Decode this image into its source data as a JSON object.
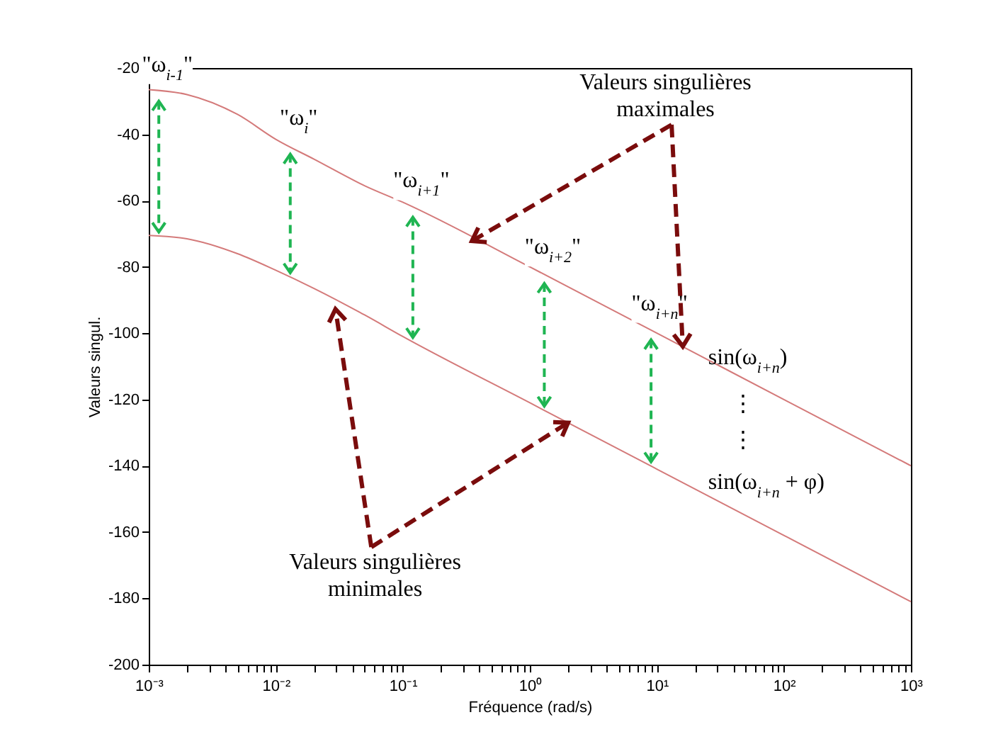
{
  "chart_data": {
    "type": "line",
    "xlabel": "Fréquence (rad/s)",
    "ylabel": "Valeurs singul.",
    "log": "x",
    "xlim": [
      0.001,
      1000
    ],
    "ylim": [
      -200,
      -20
    ],
    "xticks": [
      {
        "value": 0.001,
        "label": "10⁻³"
      },
      {
        "value": 0.002,
        "label": null
      },
      {
        "value": 0.003,
        "label": null
      },
      {
        "value": 0.004,
        "label": null
      },
      {
        "value": 0.005,
        "label": null
      },
      {
        "value": 0.006,
        "label": null
      },
      {
        "value": 0.007,
        "label": null
      },
      {
        "value": 0.008,
        "label": null
      },
      {
        "value": 0.009,
        "label": null
      },
      {
        "value": 0.01,
        "label": "10⁻²"
      },
      {
        "value": 0.02,
        "label": null
      },
      {
        "value": 0.03,
        "label": null
      },
      {
        "value": 0.04,
        "label": null
      },
      {
        "value": 0.05,
        "label": null
      },
      {
        "value": 0.06,
        "label": null
      },
      {
        "value": 0.07,
        "label": null
      },
      {
        "value": 0.08,
        "label": null
      },
      {
        "value": 0.09,
        "label": null
      },
      {
        "value": 0.1,
        "label": "10⁻¹"
      },
      {
        "value": 0.2,
        "label": null
      },
      {
        "value": 0.3,
        "label": null
      },
      {
        "value": 0.4,
        "label": null
      },
      {
        "value": 0.5,
        "label": null
      },
      {
        "value": 0.6,
        "label": null
      },
      {
        "value": 0.7,
        "label": null
      },
      {
        "value": 0.8,
        "label": null
      },
      {
        "value": 0.9,
        "label": null
      },
      {
        "value": 1,
        "label": "10⁰"
      },
      {
        "value": 2,
        "label": null
      },
      {
        "value": 3,
        "label": null
      },
      {
        "value": 4,
        "label": null
      },
      {
        "value": 5,
        "label": null
      },
      {
        "value": 6,
        "label": null
      },
      {
        "value": 7,
        "label": null
      },
      {
        "value": 8,
        "label": null
      },
      {
        "value": 9,
        "label": null
      },
      {
        "value": 10,
        "label": "10¹"
      },
      {
        "value": 20,
        "label": null
      },
      {
        "value": 30,
        "label": null
      },
      {
        "value": 40,
        "label": null
      },
      {
        "value": 50,
        "label": null
      },
      {
        "value": 60,
        "label": null
      },
      {
        "value": 70,
        "label": null
      },
      {
        "value": 80,
        "label": null
      },
      {
        "value": 90,
        "label": null
      },
      {
        "value": 100,
        "label": "10²"
      },
      {
        "value": 200,
        "label": null
      },
      {
        "value": 300,
        "label": null
      },
      {
        "value": 400,
        "label": null
      },
      {
        "value": 500,
        "label": null
      },
      {
        "value": 600,
        "label": null
      },
      {
        "value": 700,
        "label": null
      },
      {
        "value": 800,
        "label": null
      },
      {
        "value": 900,
        "label": null
      },
      {
        "value": 1000,
        "label": "10³"
      }
    ],
    "yticks": [
      -200,
      -180,
      -160,
      -140,
      -120,
      -100,
      -80,
      -60,
      -40,
      -20
    ],
    "series": [
      {
        "color": "#d47a7a",
        "x": [
          0.001,
          0.002,
          0.005,
          0.01,
          0.02,
          0.05,
          0.1,
          1,
          10,
          100,
          1000
        ],
        "values": [
          -26.5,
          -28,
          -34,
          -41.5,
          -47.5,
          -55.5,
          -60.5,
          -80,
          -100,
          -120,
          -140
        ]
      },
      {
        "color": "#d47a7a",
        "x": [
          0.001,
          0.002,
          0.005,
          0.01,
          0.02,
          0.05,
          0.1,
          1,
          10,
          100,
          1000
        ],
        "values": [
          -70.5,
          -71.5,
          -76,
          -81,
          -86.5,
          -94.5,
          -101,
          -121,
          -141,
          -161,
          -181
        ]
      }
    ],
    "annotations": [
      {
        "text": "\"ω$_{i-1}$\"",
        "x": 0.0012,
        "y": -27
      },
      {
        "text": "\"ω$_{i}$\"",
        "x": 0.013,
        "y": -43
      },
      {
        "text": "\"ω$_{i+1}$\"",
        "x": 0.12,
        "y": -62
      },
      {
        "text": "\"ω$_{i+2}$\"",
        "x": 1.3,
        "y": -82
      },
      {
        "text": "\"ω$_{i+n}$\"",
        "x": 9,
        "y": -99
      },
      "sin(ω$_{i+n}$)",
      "⋮",
      "⋮",
      "sin(ω$_{i+n}$ + φ)",
      {
        "text": "Valeurs singulières maximales",
        "x": 16,
        "y": -104
      },
      {
        "text": "Valeurs singulières minimales",
        "x": 2,
        "y": -127
      }
    ]
  }
}
